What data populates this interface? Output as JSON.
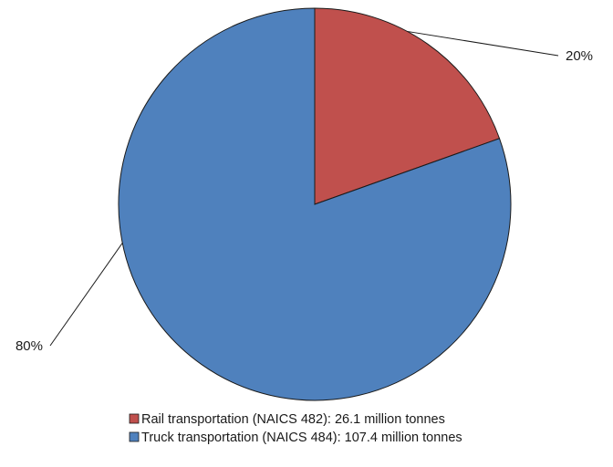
{
  "chart_data": {
    "type": "pie",
    "title": "",
    "slices": [
      {
        "label": "Rail transportation (NAICS 482): 26.1 million tonnes",
        "value": 26.1,
        "percent_label": "20%",
        "color": "#C0504D"
      },
      {
        "label": "Truck transportation (NAICS 484): 107.4 million tonnes",
        "value": 107.4,
        "percent_label": "80%",
        "color": "#4F81BD"
      }
    ],
    "legend_position": "bottom",
    "start_angle_deg": 0,
    "direction": "clockwise"
  }
}
